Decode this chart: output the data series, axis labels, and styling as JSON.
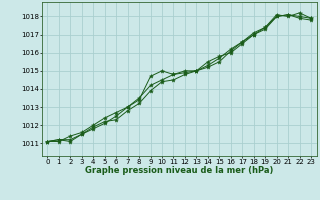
{
  "xlabel": "Graphe pression niveau de la mer (hPa)",
  "bg_color": "#cce8e8",
  "grid_color": "#aacfcf",
  "line_color": "#1a5c1a",
  "xlim": [
    -0.5,
    23.5
  ],
  "ylim": [
    1010.3,
    1018.8
  ],
  "yticks": [
    1011,
    1012,
    1013,
    1014,
    1015,
    1016,
    1017,
    1018
  ],
  "xticks": [
    0,
    1,
    2,
    3,
    4,
    5,
    6,
    7,
    8,
    9,
    10,
    11,
    12,
    13,
    14,
    15,
    16,
    17,
    18,
    19,
    20,
    21,
    22,
    23
  ],
  "series": [
    [
      1011.1,
      1011.2,
      1011.1,
      1011.5,
      1011.8,
      1012.1,
      1012.5,
      1013.0,
      1013.4,
      1014.7,
      1015.0,
      1014.8,
      1014.9,
      1015.0,
      1015.5,
      1015.8,
      1016.0,
      1016.5,
      1017.0,
      1017.3,
      1018.0,
      1018.1,
      1017.9,
      1017.8
    ],
    [
      1011.1,
      1011.2,
      1011.2,
      1011.5,
      1011.9,
      1012.2,
      1012.3,
      1012.8,
      1013.2,
      1013.9,
      1014.4,
      1014.5,
      1014.8,
      1015.0,
      1015.2,
      1015.5,
      1016.1,
      1016.6,
      1017.0,
      1017.4,
      1018.0,
      1018.1,
      1018.0,
      1017.9
    ],
    [
      1011.1,
      1011.1,
      1011.4,
      1011.6,
      1012.0,
      1012.4,
      1012.7,
      1013.0,
      1013.5,
      1014.2,
      1014.5,
      1014.8,
      1015.0,
      1015.0,
      1015.3,
      1015.7,
      1016.2,
      1016.6,
      1017.1,
      1017.4,
      1018.1,
      1018.0,
      1018.2,
      1017.9
    ]
  ],
  "tick_fontsize": 5.0,
  "xlabel_fontsize": 6.0
}
